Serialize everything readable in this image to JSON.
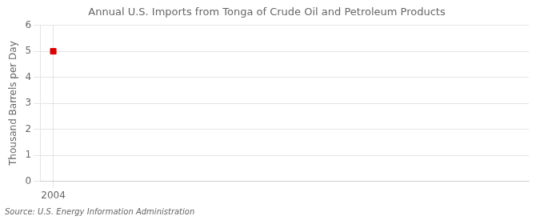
{
  "chart_data": {
    "type": "scatter",
    "title": "Annual U.S. Imports from Tonga of Crude Oil and Petroleum Products",
    "ylabel": "Thousand Barrels per Day",
    "source": "Source: U.S. Energy Information Administration",
    "x": [
      2004
    ],
    "values": [
      5
    ],
    "color": "#dd0000",
    "marker": "square",
    "xlim": [
      2003.5,
      2022
    ],
    "xticks": [
      2004
    ],
    "ylim": [
      0,
      6
    ],
    "yticks": [
      0,
      1,
      2,
      3,
      4,
      5,
      6
    ],
    "grid": true
  }
}
